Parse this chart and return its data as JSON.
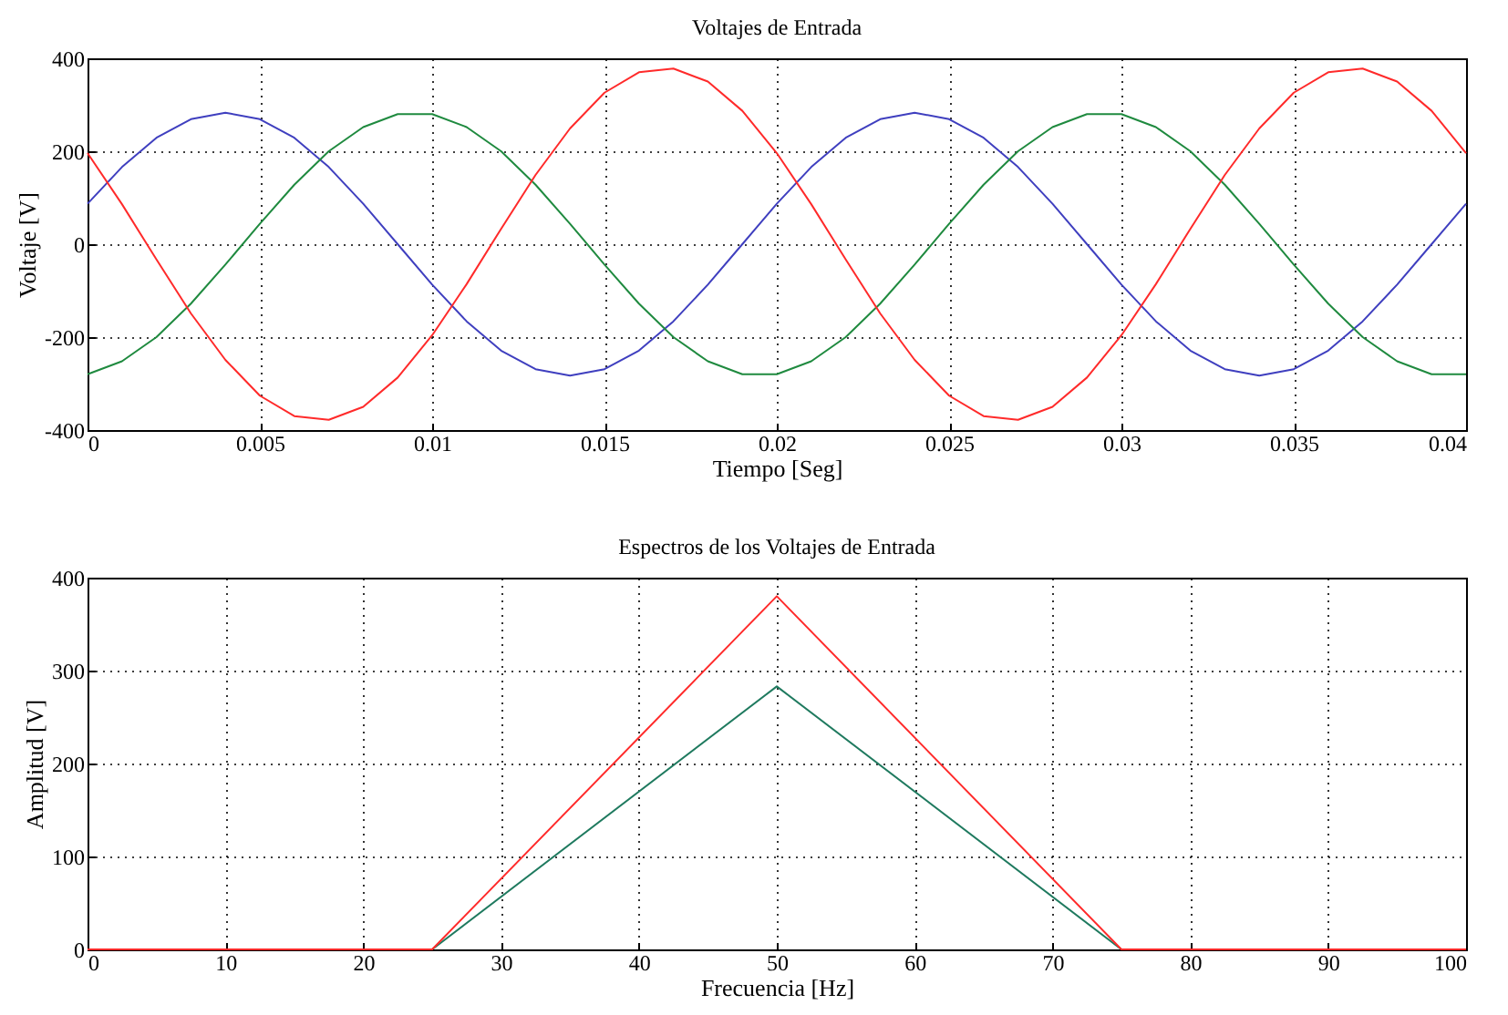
{
  "chart_data": [
    {
      "type": "line",
      "title": "Voltajes de Entrada",
      "xlabel": "Tiempo [Seg]",
      "ylabel": "Voltaje [V]",
      "x": [
        0,
        0.001,
        0.002,
        0.003,
        0.004,
        0.005,
        0.006,
        0.007,
        0.008,
        0.009,
        0.01,
        0.011,
        0.012,
        0.013,
        0.014,
        0.015,
        0.016,
        0.017,
        0.018,
        0.019,
        0.02,
        0.021,
        0.022,
        0.023,
        0.024,
        0.025,
        0.026,
        0.027,
        0.028,
        0.029,
        0.03,
        0.031,
        0.032,
        0.033,
        0.034,
        0.035,
        0.036,
        0.037,
        0.038,
        0.039,
        0.04
      ],
      "series": [
        {
          "color": "#3f3fbf",
          "values": [
            87,
            166,
            229,
            269,
            283,
            269,
            229,
            166,
            87,
            0,
            -87,
            -166,
            -229,
            -269,
            -283,
            -269,
            -229,
            -166,
            -87,
            0,
            87,
            166,
            229,
            269,
            283,
            269,
            229,
            166,
            87,
            0,
            -87,
            -166,
            -229,
            -269,
            -283,
            -269,
            -229,
            -166,
            -87,
            0,
            87
          ]
        },
        {
          "color": "#1f8a3f",
          "values": [
            -280,
            -252,
            -200,
            -128,
            -44,
            44,
            128,
            200,
            252,
            280,
            280,
            252,
            200,
            128,
            44,
            -44,
            -128,
            -200,
            -252,
            -280,
            -280,
            -252,
            -200,
            -128,
            -44,
            44,
            128,
            200,
            252,
            280,
            280,
            252,
            200,
            128,
            44,
            -44,
            -128,
            -200,
            -252,
            -280,
            -280
          ]
        },
        {
          "color": "#ff2a2a",
          "values": [
            196,
            86,
            -33,
            -149,
            -249,
            -326,
            -370,
            -378,
            -350,
            -287,
            -196,
            -86,
            33,
            149,
            249,
            326,
            370,
            378,
            350,
            287,
            196,
            86,
            -33,
            -149,
            -249,
            -326,
            -370,
            -378,
            -350,
            -287,
            -196,
            -86,
            33,
            149,
            249,
            326,
            370,
            378,
            350,
            287,
            196
          ]
        }
      ],
      "xlim": [
        0,
        0.04
      ],
      "ylim": [
        -400,
        400
      ],
      "xticks": [
        0,
        0.005,
        0.01,
        0.015,
        0.02,
        0.025,
        0.03,
        0.035,
        0.04
      ],
      "yticks": [
        -400,
        -200,
        0,
        200,
        400
      ],
      "grid": true
    },
    {
      "type": "line",
      "title": "Espectros de los Voltajes de Entrada",
      "xlabel": "Frecuencia [Hz]",
      "ylabel": "Amplitud [V]",
      "x": [
        0,
        25,
        50,
        75,
        100
      ],
      "series": [
        {
          "color": "#1f7a5f",
          "values": [
            null,
            0,
            283,
            0,
            null
          ]
        },
        {
          "color": "#ff2a2a",
          "values": [
            0,
            0,
            380,
            0,
            0
          ]
        }
      ],
      "xlim": [
        0,
        100
      ],
      "ylim": [
        0,
        400
      ],
      "xticks": [
        0,
        10,
        20,
        30,
        40,
        50,
        60,
        70,
        80,
        90,
        100
      ],
      "yticks": [
        0,
        100,
        200,
        300,
        400
      ],
      "grid": true
    }
  ]
}
